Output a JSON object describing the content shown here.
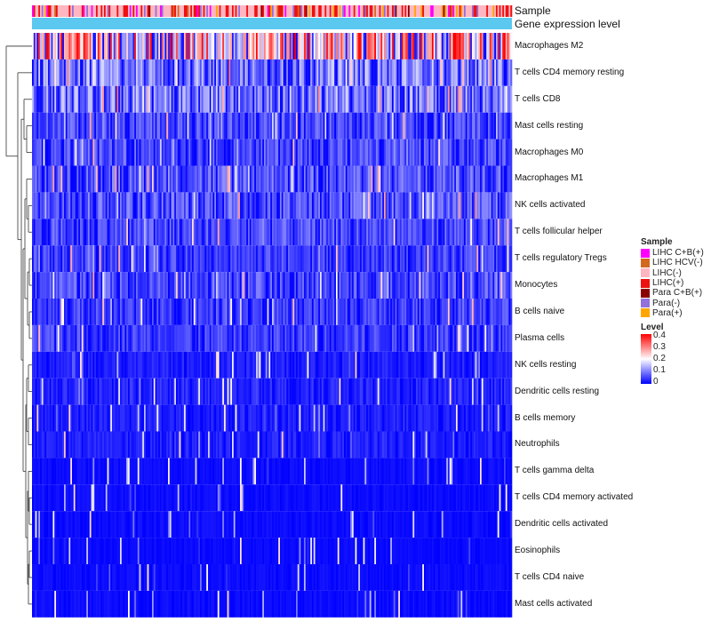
{
  "chart_data": {
    "type": "heatmap",
    "title": "",
    "row_labels": [
      "Macrophages M2",
      "T cells CD4 memory resting",
      "T cells CD8",
      "Mast cells resting",
      "Macrophages M0",
      "Macrophages M1",
      "NK cells activated",
      "T cells follicular helper",
      "T cells regulatory  Tregs",
      "Monocytes",
      "B cells naive",
      "Plasma cells",
      "NK cells resting",
      "Dendritic cells resting",
      "B cells memory",
      "Neutrophils",
      "T cells gamma delta",
      "T cells CD4 memory activated",
      "Dendritic cells activated",
      "Eosinophils",
      "T cells CD4 naive",
      "Mast cells activated"
    ],
    "row_mean_levels": [
      0.24,
      0.1,
      0.1,
      0.06,
      0.06,
      0.07,
      0.07,
      0.06,
      0.05,
      0.06,
      0.05,
      0.05,
      0.025,
      0.03,
      0.025,
      0.025,
      0.01,
      0.01,
      0.01,
      0.008,
      0.01,
      0.01
    ],
    "n_samples": 300,
    "color_range": [
      0,
      0.4
    ],
    "color_scale": [
      "#0000ff",
      "#ffffff",
      "#ff0000"
    ],
    "annotation_tracks": [
      {
        "name": "Sample"
      },
      {
        "name": "Gene expression level",
        "color": "#5bc8f0"
      }
    ],
    "sample_legend": {
      "title": "Sample",
      "entries": [
        {
          "label": "LIHC C+B(+)",
          "color": "#ff00ff"
        },
        {
          "label": "LIHC HCV(-)",
          "color": "#d2691e"
        },
        {
          "label": "LIHC(-)",
          "color": "#ffb6c1"
        },
        {
          "label": "LIHC(+)",
          "color": "#ee1111"
        },
        {
          "label": "Para C+B(+)",
          "color": "#8b0000"
        },
        {
          "label": "Para(-)",
          "color": "#9370db"
        },
        {
          "label": "Para(+)",
          "color": "#ffa500"
        }
      ],
      "sample_mix": [
        0.05,
        0.03,
        0.55,
        0.25,
        0.02,
        0.06,
        0.04
      ]
    },
    "level_legend": {
      "title": "Level",
      "ticks": [
        "0.4",
        "0.3",
        "0.2",
        "0.1",
        "0"
      ]
    },
    "dendrogram": "hierarchical clustering of rows"
  }
}
